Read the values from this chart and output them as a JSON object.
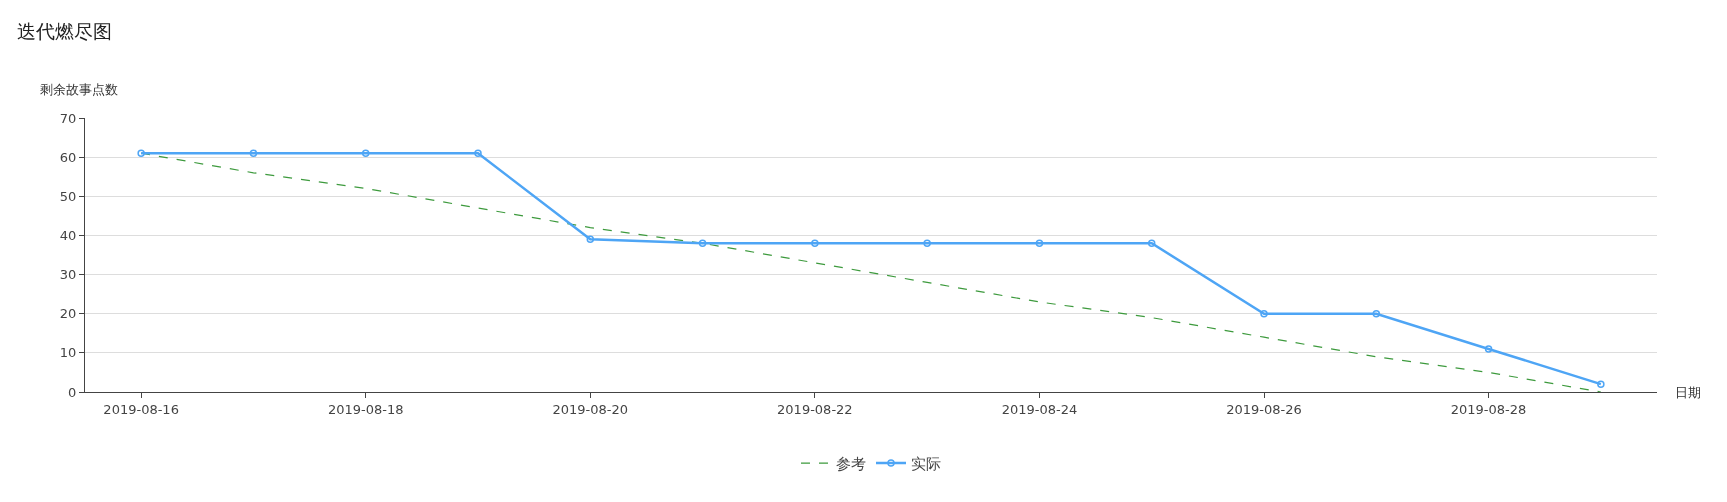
{
  "chart_data": {
    "type": "line",
    "title": "迭代燃尽图",
    "xlabel": "日期",
    "ylabel": "剩余故事点数",
    "categories": [
      "2019-08-16",
      null,
      "2019-08-18",
      null,
      "2019-08-20",
      null,
      "2019-08-22",
      null,
      "2019-08-24",
      null,
      "2019-08-26",
      null,
      "2019-08-28",
      null
    ],
    "series": [
      {
        "name": "参考",
        "color": "#3d9a3d",
        "line_style": "dashed",
        "marker": "none",
        "values": [
          61,
          56,
          52,
          47,
          42,
          38,
          33,
          28,
          23,
          19,
          14,
          9,
          5,
          0
        ]
      },
      {
        "name": "实际",
        "color": "#4ea5f5",
        "line_style": "solid",
        "marker": "circle",
        "values": [
          61,
          61,
          61,
          61,
          39,
          38,
          38,
          38,
          38,
          38,
          20,
          20,
          11,
          2
        ]
      }
    ],
    "ylim": [
      0,
      70
    ],
    "yticks": [
      0,
      10,
      20,
      30,
      40,
      50,
      60,
      70
    ],
    "grid": "y",
    "legend": "bottom"
  }
}
